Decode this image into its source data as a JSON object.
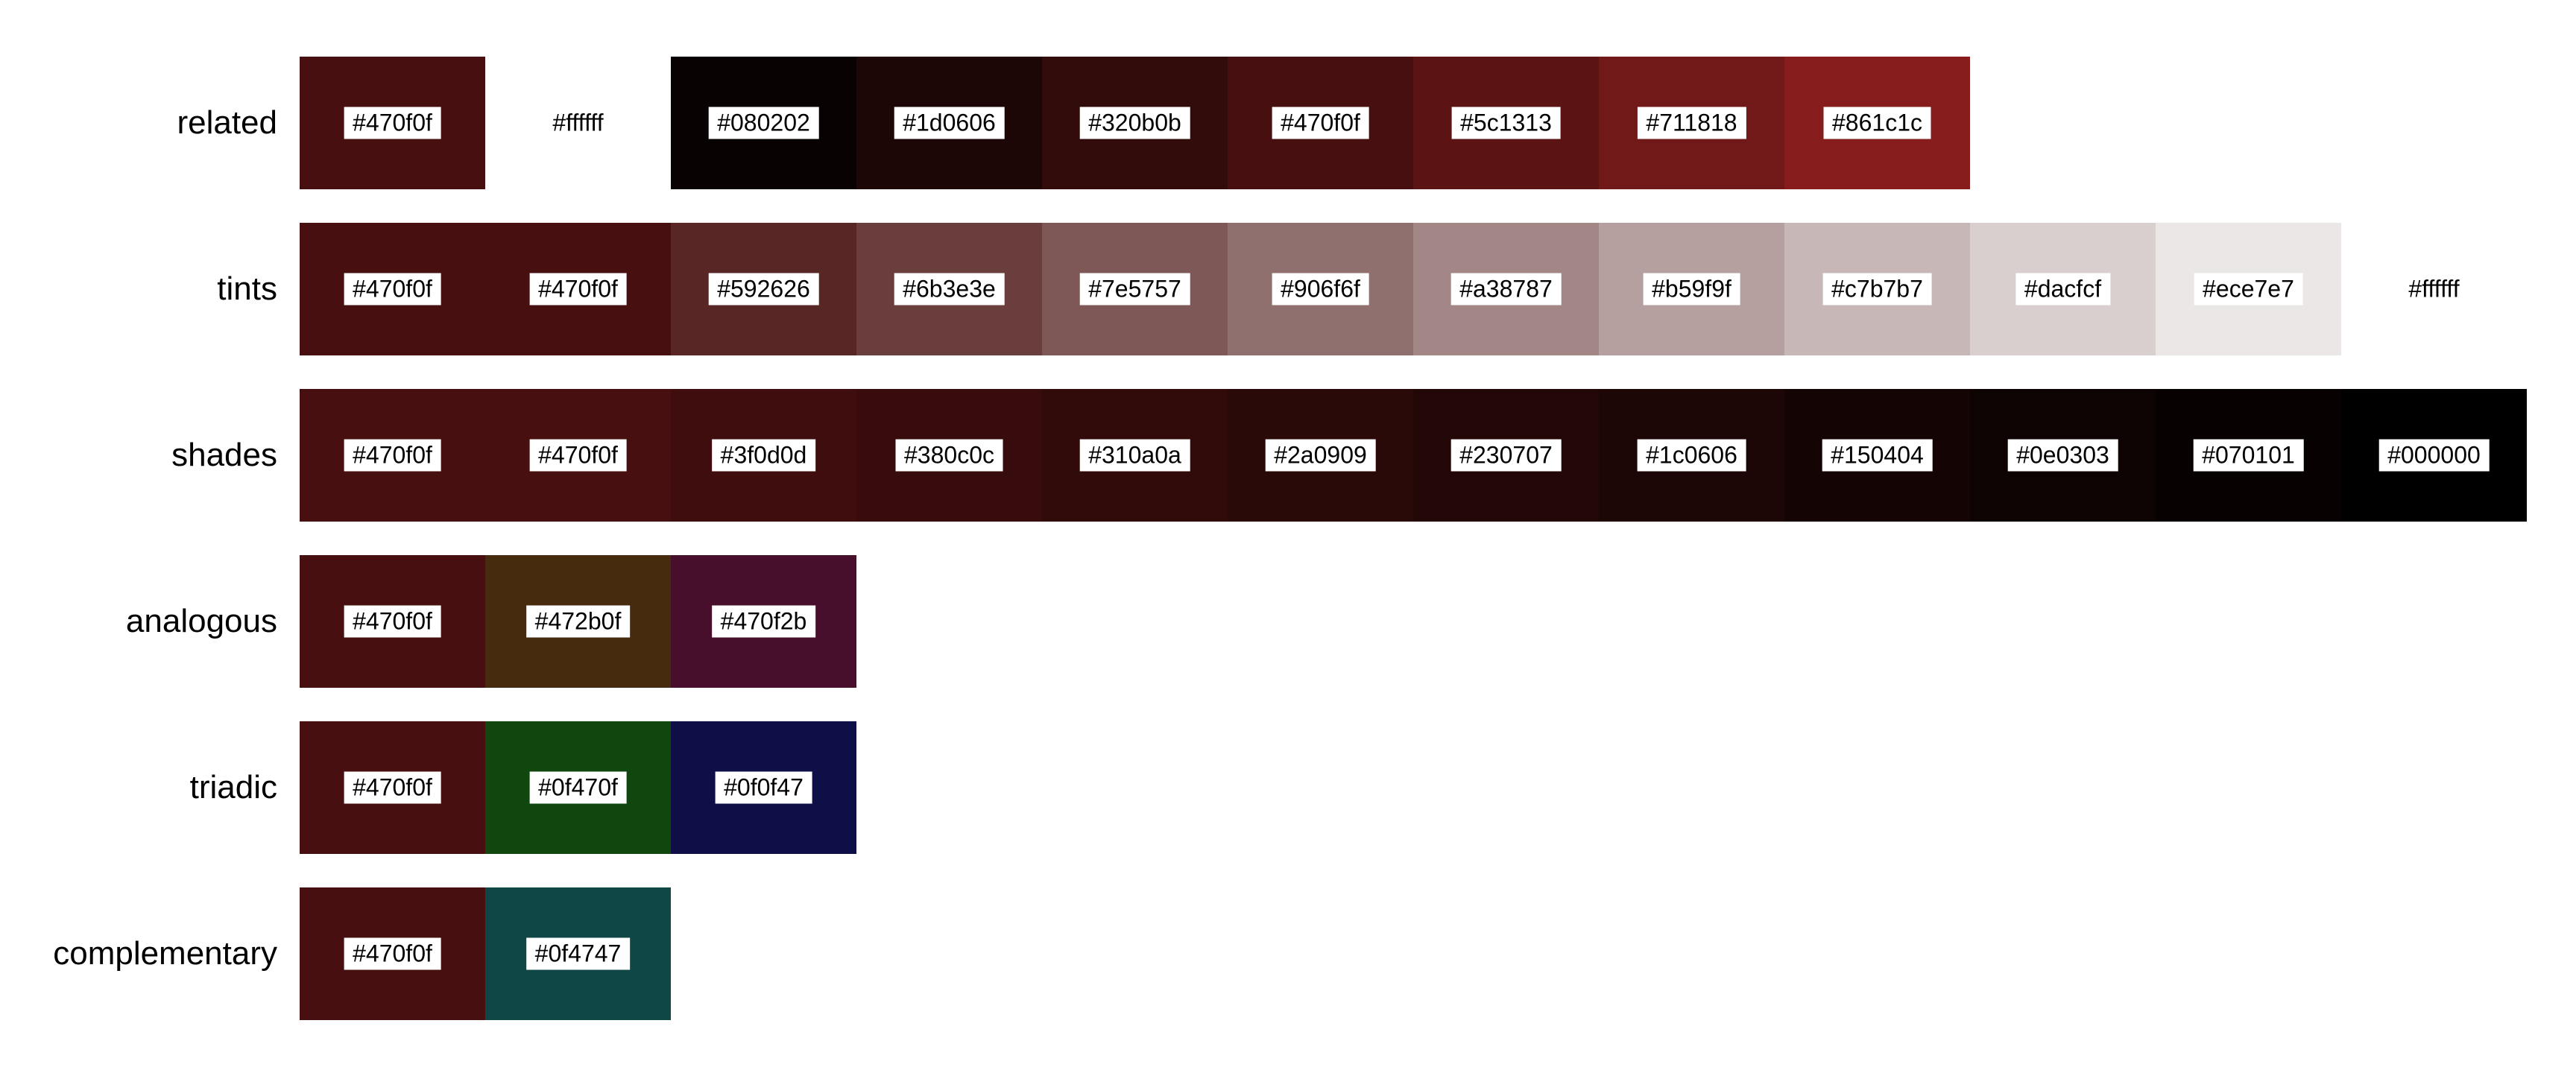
{
  "rows": [
    {
      "key": "related",
      "label": "related",
      "swatches": [
        "#470f0f",
        "#ffffff",
        "#080202",
        "#1d0606",
        "#320b0b",
        "#470f0f",
        "#5c1313",
        "#711818",
        "#861c1c"
      ]
    },
    {
      "key": "tints",
      "label": "tints",
      "swatches": [
        "#470f0f",
        "#470f0f",
        "#592626",
        "#6b3e3e",
        "#7e5757",
        "#906f6f",
        "#a38787",
        "#b59f9f",
        "#c7b7b7",
        "#dacfcf",
        "#ece7e7",
        "#ffffff"
      ]
    },
    {
      "key": "shades",
      "label": "shades",
      "swatches": [
        "#470f0f",
        "#470f0f",
        "#3f0d0d",
        "#380c0c",
        "#310a0a",
        "#2a0909",
        "#230707",
        "#1c0606",
        "#150404",
        "#0e0303",
        "#070101",
        "#000000"
      ]
    },
    {
      "key": "analogous",
      "label": "analogous",
      "swatches": [
        "#470f0f",
        "#472b0f",
        "#470f2b"
      ]
    },
    {
      "key": "triadic",
      "label": "triadic",
      "swatches": [
        "#470f0f",
        "#0f470f",
        "#0f0f47"
      ]
    },
    {
      "key": "complementary",
      "label": "complementary",
      "swatches": [
        "#470f0f",
        "#0f4747"
      ]
    }
  ]
}
